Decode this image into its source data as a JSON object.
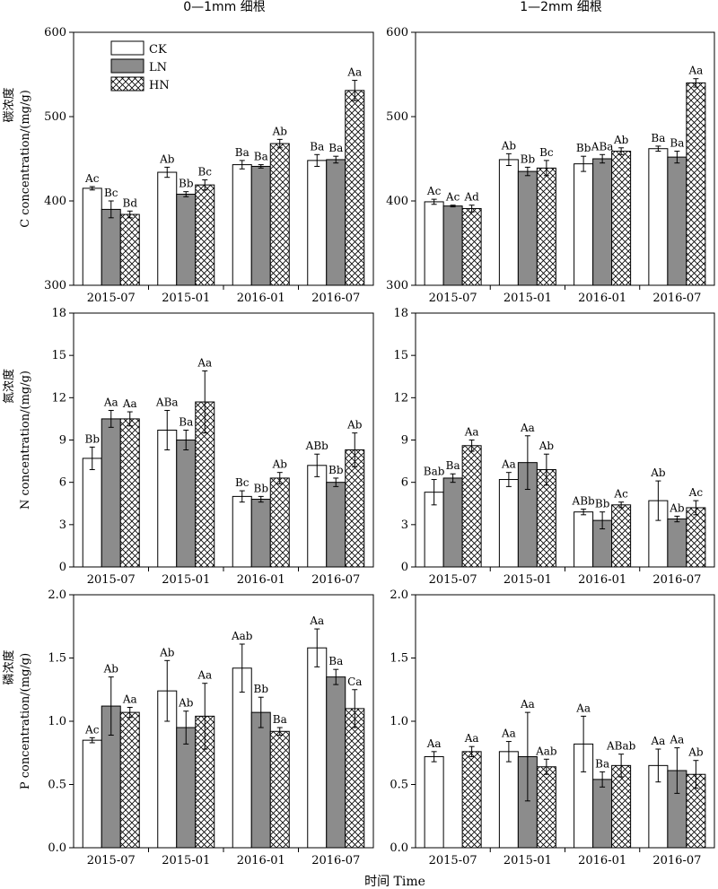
{
  "figure": {
    "col_titles": [
      "0—1mm 细根",
      "1—2mm 细根"
    ],
    "xlabel": "时间 Time"
  },
  "legend": {
    "items": [
      {
        "name": "CK",
        "fill": "white"
      },
      {
        "name": "LN",
        "fill": "gray"
      },
      {
        "name": "HN",
        "fill": "hatch"
      }
    ]
  },
  "colors": {
    "LN": "#8c8c8c",
    "CK": "#ffffff",
    "HN_hatch": "#000000"
  },
  "chart_data": [
    {
      "type": "bar",
      "row": 0,
      "col": 0,
      "title": "0—1mm 细根",
      "ylabel_cn": "碳浓度",
      "ylabel": "C concentration/(mg/g)",
      "ylim": [
        300,
        600
      ],
      "yticks": [
        300,
        400,
        500,
        600
      ],
      "categories": [
        "2015-07",
        "2015-01",
        "2016-01",
        "2016-07"
      ],
      "series": [
        {
          "name": "CK",
          "values": [
            415,
            434,
            443,
            448
          ],
          "errors": [
            2,
            6,
            5,
            7
          ],
          "labels": [
            "Ac",
            "Ab",
            "Ba",
            "Ba"
          ]
        },
        {
          "name": "LN",
          "values": [
            390,
            408,
            441,
            449
          ],
          "errors": [
            10,
            3,
            2,
            4
          ],
          "labels": [
            "Bc",
            "Bb",
            "Ba",
            "Ba"
          ]
        },
        {
          "name": "HN",
          "values": [
            384,
            419,
            468,
            531
          ],
          "errors": [
            4,
            6,
            5,
            12
          ],
          "labels": [
            "Bd",
            "Bc",
            "Ab",
            "Aa"
          ]
        }
      ]
    },
    {
      "type": "bar",
      "row": 0,
      "col": 1,
      "title": "1—2mm 细根",
      "ylim": [
        300,
        600
      ],
      "yticks": [
        300,
        400,
        500,
        600
      ],
      "categories": [
        "2015-07",
        "2015-01",
        "2016-01",
        "2016-07"
      ],
      "series": [
        {
          "name": "CK",
          "values": [
            399,
            449,
            444,
            462
          ],
          "errors": [
            3,
            7,
            9,
            3
          ],
          "labels": [
            "Ac",
            "Ab",
            "Bb",
            "Ba"
          ]
        },
        {
          "name": "LN",
          "values": [
            394,
            435,
            450,
            452
          ],
          "errors": [
            1,
            5,
            5,
            7
          ],
          "labels": [
            "Ac",
            "Bb",
            "ABa",
            "Ba"
          ]
        },
        {
          "name": "HN",
          "values": [
            391,
            439,
            459,
            540
          ],
          "errors": [
            4,
            9,
            4,
            5
          ],
          "labels": [
            "Ad",
            "Bc",
            "Ab",
            "Aa"
          ]
        }
      ]
    },
    {
      "type": "bar",
      "row": 1,
      "col": 0,
      "ylabel_cn": "氮浓度",
      "ylabel": "N concentration/(mg/g)",
      "ylim": [
        0,
        18
      ],
      "yticks": [
        0,
        3,
        6,
        9,
        12,
        15,
        18
      ],
      "categories": [
        "2015-07",
        "2015-01",
        "2016-01",
        "2016-07"
      ],
      "series": [
        {
          "name": "CK",
          "values": [
            7.7,
            9.7,
            5.0,
            7.2
          ],
          "errors": [
            0.8,
            1.4,
            0.4,
            0.8
          ],
          "labels": [
            "Bb",
            "ABa",
            "Bc",
            "ABb"
          ]
        },
        {
          "name": "LN",
          "values": [
            10.5,
            9.0,
            4.8,
            6.0
          ],
          "errors": [
            0.6,
            0.7,
            0.2,
            0.3
          ],
          "labels": [
            "Aa",
            "Ba",
            "Bb",
            "Bb"
          ]
        },
        {
          "name": "HN",
          "values": [
            10.5,
            11.7,
            6.3,
            8.3
          ],
          "errors": [
            0.5,
            2.2,
            0.4,
            1.2
          ],
          "labels": [
            "Aa",
            "Aa",
            "Ab",
            "Ab"
          ]
        }
      ]
    },
    {
      "type": "bar",
      "row": 1,
      "col": 1,
      "ylim": [
        0,
        18
      ],
      "yticks": [
        0,
        3,
        6,
        9,
        12,
        15,
        18
      ],
      "categories": [
        "2015-07",
        "2015-01",
        "2016-01",
        "2016-07"
      ],
      "series": [
        {
          "name": "CK",
          "values": [
            5.3,
            6.2,
            3.9,
            4.7
          ],
          "errors": [
            0.9,
            0.5,
            0.2,
            1.4
          ],
          "labels": [
            "Bab",
            "Aa",
            "ABb",
            "Ab"
          ]
        },
        {
          "name": "LN",
          "values": [
            6.3,
            7.4,
            3.3,
            3.4
          ],
          "errors": [
            0.3,
            1.9,
            0.6,
            0.2
          ],
          "labels": [
            "Ba",
            "Aa",
            "Bb",
            "Ab"
          ]
        },
        {
          "name": "HN",
          "values": [
            8.6,
            6.9,
            4.4,
            4.2
          ],
          "errors": [
            0.4,
            1.1,
            0.2,
            0.5
          ],
          "labels": [
            "Aa",
            "Ab",
            "Ac",
            "Ac"
          ]
        }
      ]
    },
    {
      "type": "bar",
      "row": 2,
      "col": 0,
      "ylabel_cn": "磷浓度",
      "ylabel": "P concentration/(mg/g)",
      "ylim": [
        0,
        2.0
      ],
      "yticks": [
        0,
        0.5,
        1.0,
        1.5,
        2.0
      ],
      "categories": [
        "2015-07",
        "2015-01",
        "2016-01",
        "2016-07"
      ],
      "series": [
        {
          "name": "CK",
          "values": [
            0.85,
            1.24,
            1.42,
            1.58
          ],
          "errors": [
            0.02,
            0.24,
            0.19,
            0.15
          ],
          "labels": [
            "Ac",
            "Ab",
            "Aab",
            "Aa"
          ]
        },
        {
          "name": "LN",
          "values": [
            1.12,
            0.95,
            1.07,
            1.35
          ],
          "errors": [
            0.23,
            0.13,
            0.12,
            0.06
          ],
          "labels": [
            "Ab",
            "Ab",
            "Bb",
            "Ba"
          ]
        },
        {
          "name": "HN",
          "values": [
            1.07,
            1.04,
            0.92,
            1.1
          ],
          "errors": [
            0.04,
            0.26,
            0.03,
            0.15
          ],
          "labels": [
            "Aa",
            "Aa",
            "Ba",
            "Ca"
          ]
        }
      ]
    },
    {
      "type": "bar",
      "row": 2,
      "col": 1,
      "ylim": [
        0,
        2.0
      ],
      "yticks": [
        0,
        0.5,
        1.0,
        1.5,
        2.0
      ],
      "categories": [
        "2015-07",
        "2015-01",
        "2016-01",
        "2016-07"
      ],
      "series": [
        {
          "name": "CK",
          "values": [
            0.72,
            0.76,
            0.82,
            0.65
          ],
          "errors": [
            0.04,
            0.08,
            0.22,
            0.13
          ],
          "labels": [
            "Aa",
            "Aa",
            "Aa",
            "Aa"
          ]
        },
        {
          "name": "LN",
          "values": [
            null,
            0.72,
            0.54,
            0.61
          ],
          "errors": [
            null,
            0.35,
            0.06,
            0.18
          ],
          "labels": [
            null,
            "Aa",
            "Ba",
            "Aa"
          ]
        },
        {
          "name": "HN",
          "values": [
            0.76,
            0.64,
            0.65,
            0.58
          ],
          "errors": [
            0.04,
            0.06,
            0.09,
            0.11
          ],
          "labels": [
            "Aa",
            "Aab",
            "ABab",
            "Ab"
          ]
        }
      ]
    }
  ]
}
